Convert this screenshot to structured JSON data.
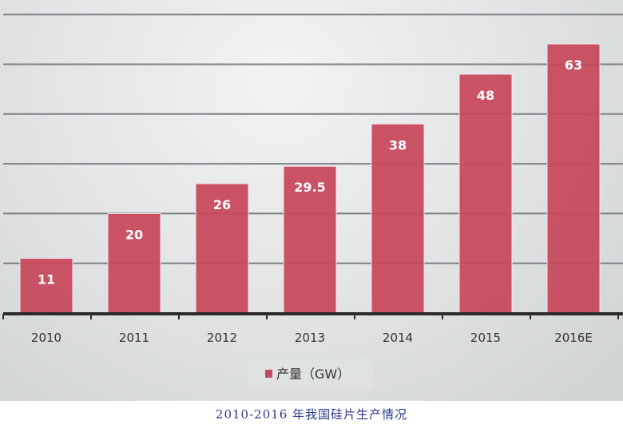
{
  "chart_data": {
    "type": "bar",
    "categories": [
      "2010",
      "2011",
      "2012",
      "2013",
      "2014",
      "2015",
      "2016E"
    ],
    "series": [
      {
        "name": "产量（GW）",
        "values": [
          11,
          20,
          26,
          29.5,
          38,
          48,
          63
        ]
      }
    ],
    "data_labels": [
      "11",
      "20",
      "26",
      "29.5",
      "38",
      "48",
      "63"
    ],
    "title": "",
    "xlabel": "",
    "ylabel": "",
    "ylim": [
      0,
      60
    ],
    "grid": true,
    "legend": "bottom",
    "bar_color": "#c74a5e",
    "caption": "2010-2016 年我国硅片生产情况"
  }
}
